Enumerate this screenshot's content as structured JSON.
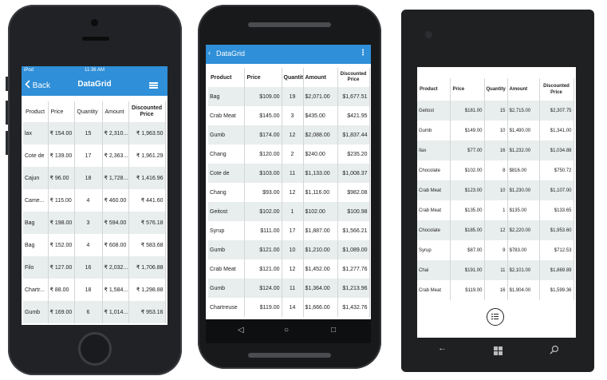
{
  "ios": {
    "carrier": "iPod",
    "time": "11:36 AM",
    "back_label": "Back",
    "title": "DataGrid",
    "headers": [
      "Product",
      "Price",
      "Quantity",
      "Amount",
      "Discounted Price"
    ],
    "rows": [
      [
        "lax",
        "₹ 154.00",
        "15",
        "₹ 2,310...",
        "₹ 1,963.50"
      ],
      [
        "Cote de",
        "₹ 139.00",
        "17",
        "₹ 2,363...",
        "₹ 1,961.29"
      ],
      [
        "Cajun",
        "₹ 96.00",
        "18",
        "₹ 1,728...",
        "₹ 1,416.96"
      ],
      [
        "Came...",
        "₹ 115.00",
        "4",
        "₹ 460.00",
        "₹ 441.60"
      ],
      [
        "Bag",
        "₹ 198.00",
        "3",
        "₹ 594.00",
        "₹ 576.18"
      ],
      [
        "Bag",
        "₹ 152.00",
        "4",
        "₹ 608.00",
        "₹ 583.68"
      ],
      [
        "Filo",
        "₹ 127.00",
        "16",
        "₹ 2,032...",
        "₹ 1,706.88"
      ],
      [
        "Chartr...",
        "₹ 88.00",
        "18",
        "₹ 1,584...",
        "₹ 1,298.88"
      ],
      [
        "Gumb",
        "₹ 169.00",
        "6",
        "₹ 1,014...",
        "₹ 953.16"
      ]
    ]
  },
  "android": {
    "title": "DataGrid",
    "headers": [
      "Product",
      "Price",
      "Quantity",
      "Amount",
      "Discounted Price"
    ],
    "rows": [
      [
        "Bag",
        "$109.00",
        "19",
        "$2,071.00",
        "$1,677.51"
      ],
      [
        "Crab Meat",
        "$145.00",
        "3",
        "$435.00",
        "$421.95"
      ],
      [
        "Gumb",
        "$174.00",
        "12",
        "$2,088.00",
        "$1,837.44"
      ],
      [
        "Chang",
        "$120.00",
        "2",
        "$240.00",
        "$235.20"
      ],
      [
        "Cote de",
        "$103.00",
        "11",
        "$1,133.00",
        "$1,008.37"
      ],
      [
        "Chang",
        "$93.00",
        "12",
        "$1,116.00",
        "$982.08"
      ],
      [
        "Geitost",
        "$102.00",
        "1",
        "$102.00",
        "$100.98"
      ],
      [
        "Syrup",
        "$111.00",
        "17",
        "$1,887.00",
        "$1,566.21"
      ],
      [
        "Gumb",
        "$121.00",
        "10",
        "$1,210.00",
        "$1,089.00"
      ],
      [
        "Crab Meat",
        "$121.00",
        "12",
        "$1,452.00",
        "$1,277.76"
      ],
      [
        "Gumb",
        "$124.00",
        "11",
        "$1,364.00",
        "$1,213.96"
      ],
      [
        "Chartreuse",
        "$119.00",
        "14",
        "$1,666.00",
        "$1,432.76"
      ]
    ]
  },
  "windows": {
    "headers": [
      "Product",
      "Price",
      "Quantity",
      "Amount",
      "Discounted Price"
    ],
    "rows": [
      [
        "Geitost",
        "$181.00",
        "15",
        "$2,715.00",
        "$2,307.75"
      ],
      [
        "Gumb",
        "$149.00",
        "10",
        "$1,490.00",
        "$1,341.00"
      ],
      [
        "Ilax",
        "$77.00",
        "16",
        "$1,232.00",
        "$1,034.88"
      ],
      [
        "Chocolate",
        "$102.00",
        "8",
        "$816.00",
        "$750.72"
      ],
      [
        "Crab Meat",
        "$123.00",
        "10",
        "$1,230.00",
        "$1,107.00"
      ],
      [
        "Crab Meat",
        "$135.00",
        "1",
        "$135.00",
        "$133.65"
      ],
      [
        "Chocolate",
        "$185.00",
        "12",
        "$2,220.00",
        "$1,953.60"
      ],
      [
        "Syrup",
        "$87.00",
        "9",
        "$783.00",
        "$712.53"
      ],
      [
        "Chai",
        "$191.00",
        "11",
        "$2,101.00",
        "$1,869.89"
      ],
      [
        "Crab Meat",
        "$119.00",
        "16",
        "$1,904.00",
        "$1,599.36"
      ]
    ]
  },
  "colors": {
    "accent": "#2f8fd8",
    "alt_row": "#e8eded",
    "device_body": "#202225"
  },
  "icons": [
    "chevron-left-icon",
    "hamburger-icon",
    "overflow-menu-icon",
    "back-triangle-icon",
    "home-circle-icon",
    "recents-square-icon",
    "list-menu-icon",
    "windows-logo-icon",
    "search-icon"
  ]
}
